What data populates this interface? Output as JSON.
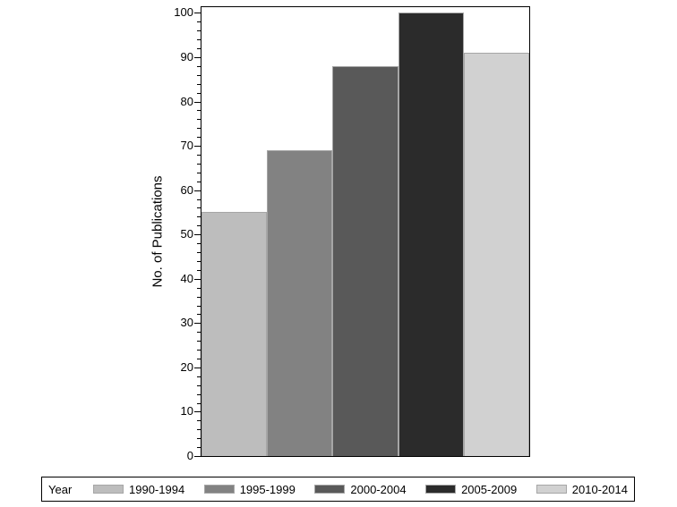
{
  "chart_data": {
    "type": "bar",
    "title": "",
    "xlabel": "",
    "ylabel": "No. of Publications",
    "categories": [
      "1990-1994",
      "1995-1999",
      "2000-2004",
      "2005-2009",
      "2010-2014"
    ],
    "values": [
      55,
      69,
      88,
      100,
      91
    ],
    "ylim": [
      0,
      100
    ],
    "y_major_ticks": [
      0,
      10,
      20,
      30,
      40,
      50,
      60,
      70,
      80,
      90,
      100
    ],
    "y_minor_tick_interval": 2,
    "grid": false,
    "legend_title": "Year",
    "legend_position": "bottom",
    "bar_colors": [
      "#bdbdbd",
      "#828282",
      "#595959",
      "#2b2b2b",
      "#d1d1d1"
    ],
    "bar_outline_color": "#a6a6a6",
    "frame_color": "#000000",
    "background_color": "#ffffff"
  }
}
